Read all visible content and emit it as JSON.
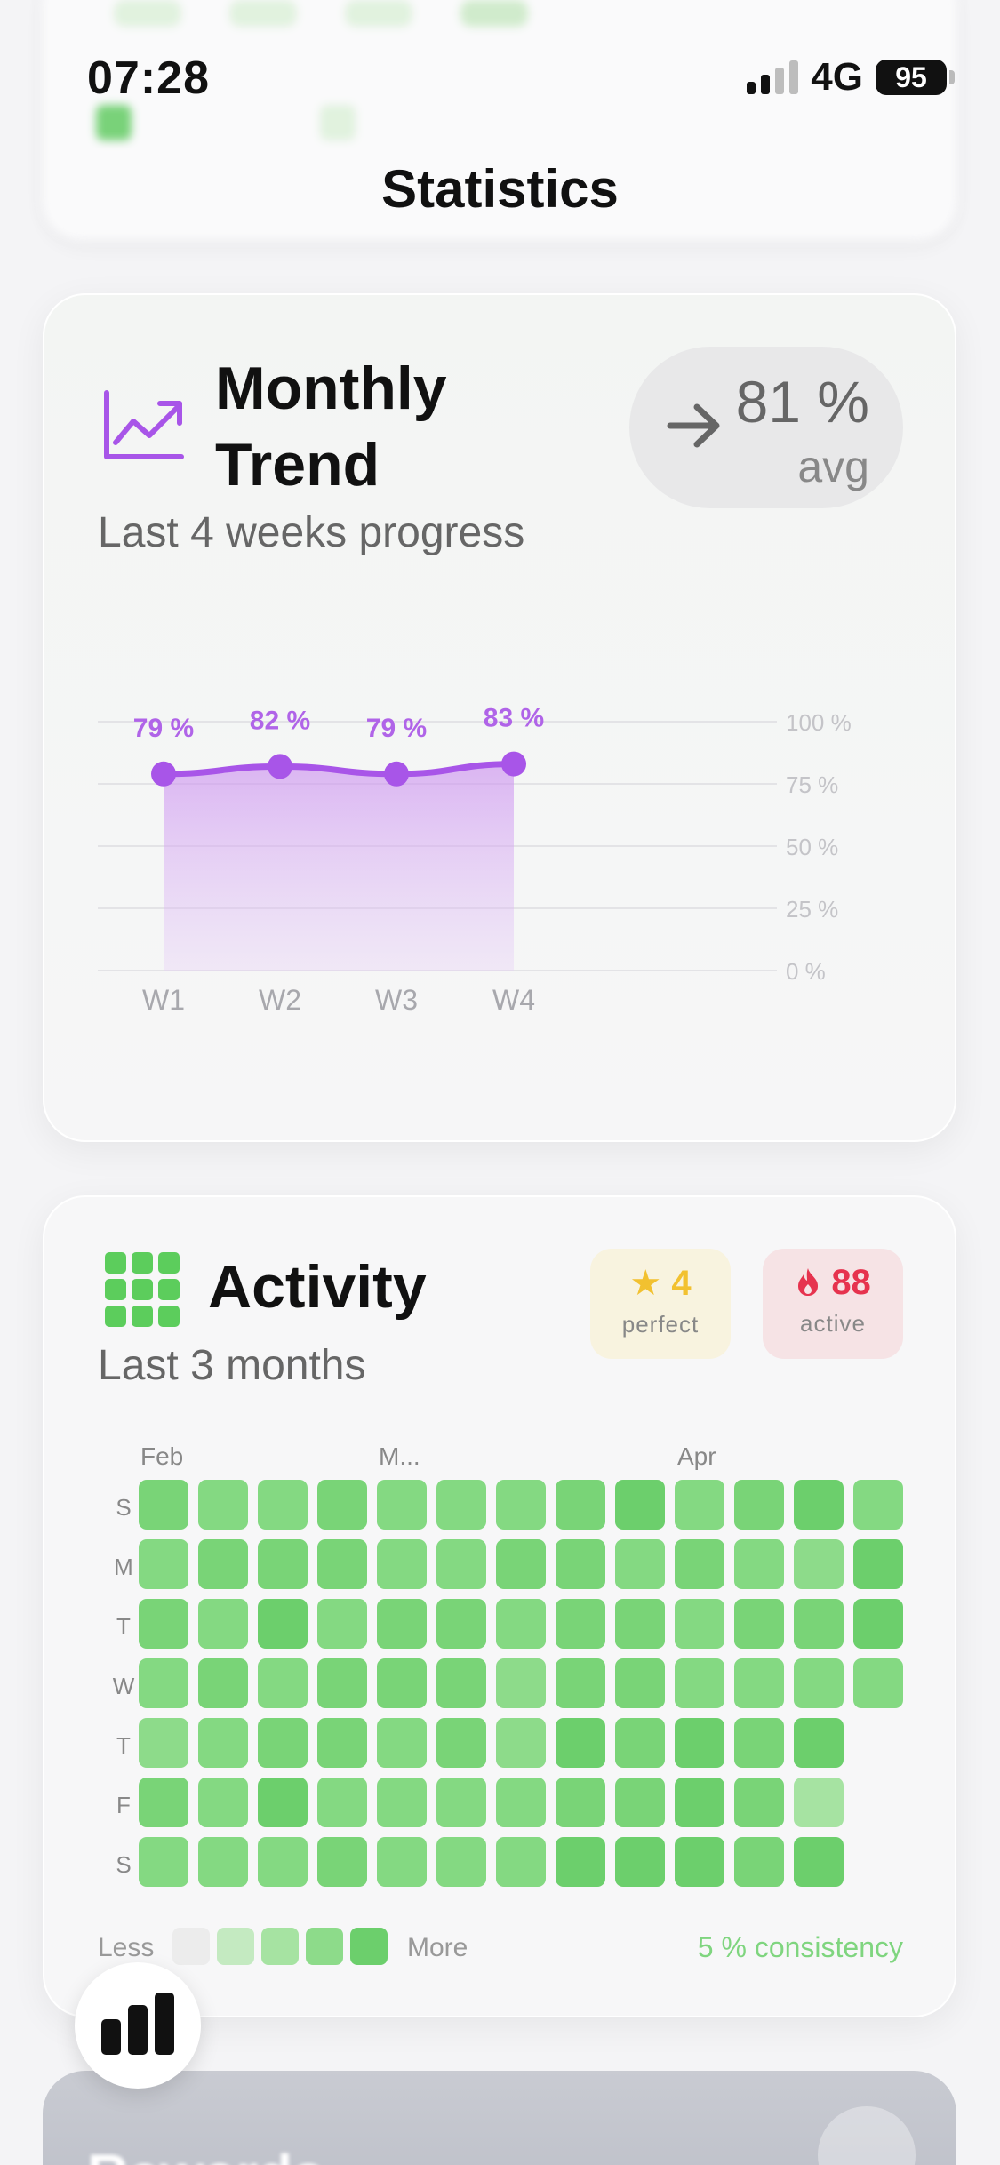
{
  "status_bar": {
    "time": "07:28",
    "network": "4G",
    "battery": "95"
  },
  "header": {
    "title": "Statistics"
  },
  "monthly_trend": {
    "title_line1": "Monthly",
    "title_line2": "Trend",
    "subtitle": "Last 4 weeks progress",
    "avg_value": "81 %",
    "avg_label": "avg",
    "icon": "chart-trend-up-icon",
    "accent_color": "#a855e8"
  },
  "chart_data": {
    "type": "area",
    "categories": [
      "W1",
      "W2",
      "W3",
      "W4"
    ],
    "values": [
      79,
      82,
      79,
      83
    ],
    "data_labels": [
      "79 %",
      "82 %",
      "79 %",
      "83 %"
    ],
    "y_ticks": [
      "100 %",
      "75 %",
      "50 %",
      "25 %",
      "0 %"
    ],
    "y_tick_values": [
      100,
      75,
      50,
      25,
      0
    ],
    "ylim": [
      0,
      100
    ],
    "grid": true,
    "title": "",
    "xlabel": "",
    "ylabel": ""
  },
  "activity": {
    "title": "Activity",
    "subtitle": "Last 3 months",
    "icon": "grid-icon",
    "badges": {
      "perfect": {
        "value": "4",
        "label": "perfect",
        "icon": "star-icon"
      },
      "active": {
        "value": "88",
        "label": "active",
        "icon": "flame-icon"
      }
    },
    "months": [
      "Feb",
      "M...",
      "Apr"
    ],
    "day_labels": [
      "S",
      "M",
      "T",
      "W",
      "T",
      "F",
      "S"
    ],
    "levels": [
      [
        3,
        2,
        2,
        3,
        2,
        2,
        2,
        3,
        4,
        2,
        3,
        4,
        2
      ],
      [
        2,
        3,
        3,
        3,
        2,
        2,
        3,
        3,
        2,
        3,
        2,
        1,
        4
      ],
      [
        3,
        2,
        4,
        2,
        3,
        3,
        2,
        3,
        3,
        2,
        3,
        3,
        4
      ],
      [
        2,
        3,
        2,
        3,
        3,
        3,
        1,
        3,
        3,
        2,
        2,
        2,
        2
      ],
      [
        1,
        2,
        3,
        3,
        2,
        3,
        1,
        4,
        3,
        4,
        3,
        4
      ],
      [
        3,
        2,
        4,
        2,
        2,
        2,
        2,
        3,
        3,
        4,
        3,
        0
      ],
      [
        2,
        2,
        2,
        3,
        2,
        2,
        2,
        4,
        4,
        4,
        3,
        4
      ]
    ],
    "legend": {
      "less": "Less",
      "more": "More"
    },
    "consistency": "5 % consistency"
  },
  "rewards": {
    "title": "Rewards"
  },
  "tab_bar": {
    "stats_icon": "bar-chart-icon"
  }
}
